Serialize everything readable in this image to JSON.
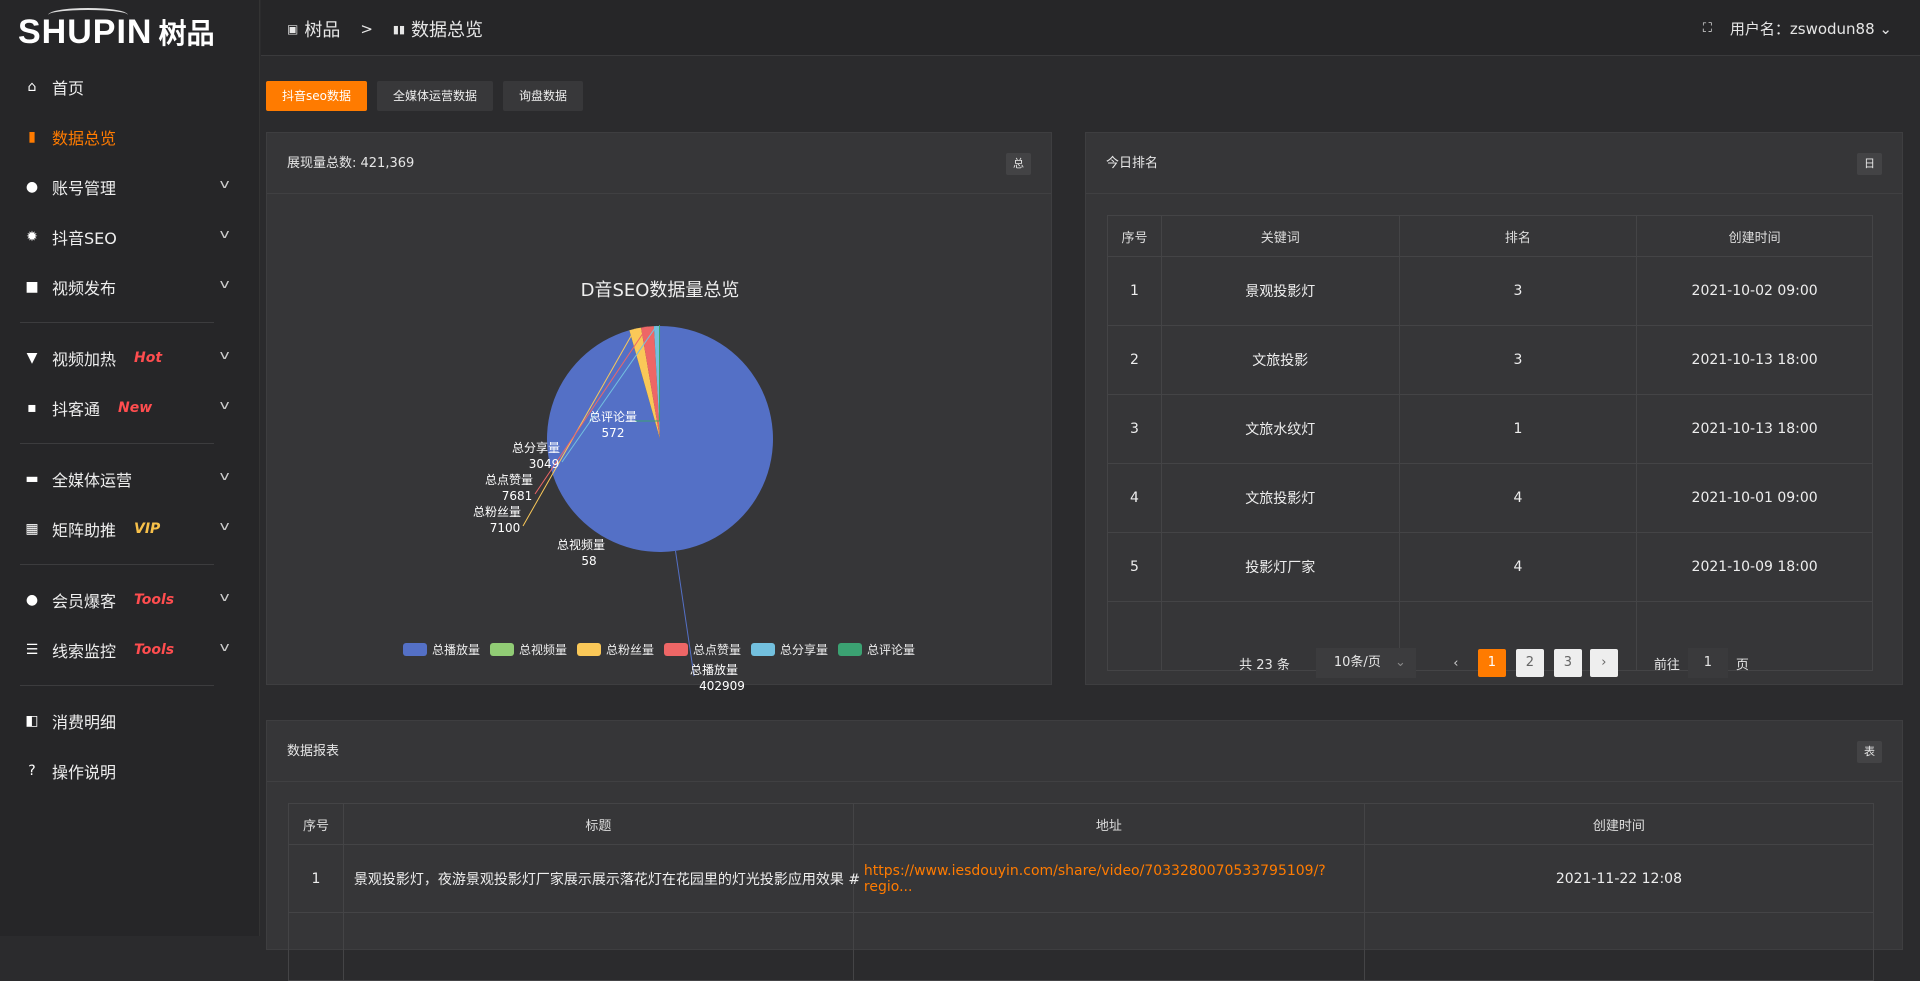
{
  "logo": {
    "en": "SHUPIN",
    "cn": "树品"
  },
  "sidebar": {
    "items": [
      {
        "label": "首页",
        "icon": "home-icon",
        "glyph": "⌂"
      },
      {
        "label": "数据总览",
        "icon": "bar-chart-icon",
        "glyph": "▮",
        "active": true
      },
      {
        "label": "账号管理",
        "icon": "user-icon",
        "glyph": "●",
        "chev": true
      },
      {
        "label": "抖音SEO",
        "icon": "gear-icon",
        "glyph": "✹",
        "chev": true
      },
      {
        "label": "视频发布",
        "icon": "camera-icon",
        "glyph": "■",
        "chev": true
      },
      {
        "label": "视频加热",
        "icon": "brush-icon",
        "glyph": "▼",
        "chev": true,
        "badge": "Hot",
        "badge_color": "#ff4d4f",
        "div_before": true
      },
      {
        "label": "抖客通",
        "icon": "chat-icon",
        "glyph": "▪",
        "chev": true,
        "badge": "New",
        "badge_color": "#ff4d4f"
      },
      {
        "label": "全媒体运营",
        "icon": "monitor-icon",
        "glyph": "▬",
        "chev": true,
        "badge": null,
        "div_before": true
      },
      {
        "label": "矩阵助推",
        "icon": "grid-icon",
        "glyph": "▦",
        "chev": true,
        "badge": "VIP",
        "badge_color": "#f7c04a"
      },
      {
        "label": "会员爆客",
        "icon": "user-icon",
        "glyph": "●",
        "chev": true,
        "badge": "Tools",
        "badge_color": "#ff4d4f",
        "div_before": true
      },
      {
        "label": "线索监控",
        "icon": "sliders-icon",
        "glyph": "☰",
        "chev": true,
        "badge": "Tools",
        "badge_color": "#ff4d4f"
      },
      {
        "label": "消费明细",
        "icon": "wallet-icon",
        "glyph": "◧",
        "div_before": true
      },
      {
        "label": "操作说明",
        "icon": "help-icon",
        "glyph": "?"
      }
    ]
  },
  "header": {
    "crumb_root": "树品",
    "crumb_sep": ">",
    "crumb_current": "数据总览",
    "user_label": "用户名：",
    "username": "zswodun88"
  },
  "tabs": [
    {
      "label": "抖音seo数据",
      "active": true
    },
    {
      "label": "全媒体运营数据"
    },
    {
      "label": "询盘数据"
    }
  ],
  "pie_card": {
    "title": "展现量总数: 421,369",
    "tag": "总"
  },
  "chart_data": {
    "type": "pie",
    "title": "D音SEO数据量总览",
    "legend_position": "bottom",
    "slices": [
      {
        "name": "总播放量",
        "value": 402909,
        "color": "#5470c6"
      },
      {
        "name": "总视频量",
        "value": 58,
        "color": "#91cc75"
      },
      {
        "name": "总粉丝量",
        "value": 7100,
        "color": "#fac858"
      },
      {
        "name": "总点赞量",
        "value": 7681,
        "color": "#ee6666"
      },
      {
        "name": "总分享量",
        "value": 3049,
        "color": "#73c0de"
      },
      {
        "name": "总评论量",
        "value": 572,
        "color": "#3ba272"
      }
    ]
  },
  "rank_card": {
    "title": "今日排名",
    "tag": "日",
    "columns": [
      "序号",
      "关键词",
      "排名",
      "创建时间"
    ],
    "rows": [
      [
        "1",
        "景观投影灯",
        "3",
        "2021-10-02 09:00"
      ],
      [
        "2",
        "文旅投影",
        "3",
        "2021-10-13 18:00"
      ],
      [
        "3",
        "文旅水纹灯",
        "1",
        "2021-10-13 18:00"
      ],
      [
        "4",
        "文旅投影灯",
        "4",
        "2021-10-01 09:00"
      ],
      [
        "5",
        "投影灯厂家",
        "4",
        "2021-10-09 18:00"
      ]
    ],
    "pager": {
      "total": "共 23 条",
      "page_size": "10条/页",
      "pages": [
        "1",
        "2",
        "3"
      ],
      "current": "1",
      "goto_label": "前往",
      "goto_value": "1",
      "page_unit": "页"
    }
  },
  "report_card": {
    "title": "数据报表",
    "tag": "表",
    "columns": [
      "序号",
      "标题",
      "地址",
      "创建时间"
    ],
    "rows": [
      [
        "1",
        "景观投影灯，夜游景观投影灯厂家展示展示落花灯在花园里的灯光投影应用效果 #",
        "https://www.iesdouyin.com/share/video/7033280070533795109/?regio...",
        "2021-11-22 12:08"
      ]
    ]
  }
}
